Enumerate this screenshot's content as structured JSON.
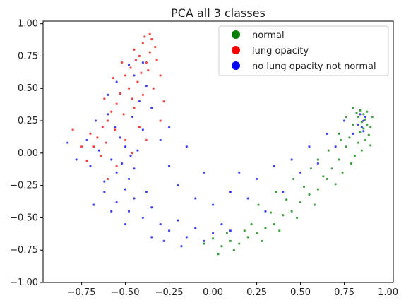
{
  "chart_data": {
    "type": "scatter",
    "title": "PCA all 3 classes",
    "xlabel": "",
    "ylabel": "",
    "xlim": [
      -0.97,
      1.03
    ],
    "ylim": [
      -1.0,
      1.02
    ],
    "x_ticks": [
      -0.75,
      -0.5,
      -0.25,
      0.0,
      0.25,
      0.5,
      0.75,
      1.0
    ],
    "x_tick_labels": [
      "−0.75",
      "−0.50",
      "−0.25",
      "0.00",
      "0.25",
      "0.50",
      "0.75",
      "1.00"
    ],
    "y_ticks": [
      -1.0,
      -0.75,
      -0.5,
      -0.25,
      0.0,
      0.25,
      0.5,
      0.75,
      1.0
    ],
    "y_tick_labels": [
      "−1.00",
      "−0.75",
      "−0.50",
      "−0.25",
      "0.00",
      "0.25",
      "0.50",
      "0.75",
      "1.00"
    ],
    "grid": false,
    "legend_position": "top-right",
    "series": [
      {
        "name": "normal",
        "color": "#008000",
        "points": [
          [
            0.84,
            0.33
          ],
          [
            0.86,
            0.3
          ],
          [
            0.83,
            0.28
          ],
          [
            0.87,
            0.26
          ],
          [
            0.85,
            0.24
          ],
          [
            0.88,
            0.22
          ],
          [
            0.82,
            0.31
          ],
          [
            0.86,
            0.19
          ],
          [
            0.84,
            0.16
          ],
          [
            0.89,
            0.14
          ],
          [
            0.8,
            0.22
          ],
          [
            0.87,
            0.1
          ],
          [
            0.83,
            0.08
          ],
          [
            0.9,
            0.06
          ],
          [
            0.78,
            0.12
          ],
          [
            0.85,
            0.02
          ],
          [
            0.81,
            -0.02
          ],
          [
            0.76,
            0.05
          ],
          [
            0.72,
            -0.05
          ],
          [
            0.79,
            -0.08
          ],
          [
            0.68,
            -0.12
          ],
          [
            0.74,
            -0.15
          ],
          [
            0.65,
            -0.2
          ],
          [
            0.7,
            -0.24
          ],
          [
            0.6,
            -0.28
          ],
          [
            0.63,
            -0.18
          ],
          [
            0.55,
            -0.32
          ],
          [
            0.58,
            -0.4
          ],
          [
            0.5,
            -0.38
          ],
          [
            0.52,
            -0.26
          ],
          [
            0.45,
            -0.45
          ],
          [
            0.48,
            -0.5
          ],
          [
            0.4,
            -0.48
          ],
          [
            0.42,
            -0.36
          ],
          [
            0.35,
            -0.55
          ],
          [
            0.38,
            -0.6
          ],
          [
            0.3,
            -0.58
          ],
          [
            0.33,
            -0.46
          ],
          [
            0.25,
            -0.62
          ],
          [
            0.28,
            -0.68
          ],
          [
            0.2,
            -0.65
          ],
          [
            0.22,
            -0.55
          ],
          [
            0.15,
            -0.7
          ],
          [
            0.18,
            -0.6
          ],
          [
            0.1,
            -0.68
          ],
          [
            0.12,
            -0.75
          ],
          [
            0.05,
            -0.72
          ],
          [
            0.08,
            -0.62
          ],
          [
            0.0,
            -0.66
          ],
          [
            0.03,
            -0.78
          ],
          [
            -0.05,
            -0.7
          ],
          [
            0.6,
            -0.05
          ],
          [
            0.66,
            0.02
          ],
          [
            0.72,
            0.15
          ],
          [
            0.56,
            -0.12
          ],
          [
            0.46,
            -0.2
          ],
          [
            0.36,
            -0.3
          ],
          [
            0.26,
            -0.4
          ],
          [
            0.9,
            0.2
          ],
          [
            0.91,
            0.28
          ],
          [
            0.8,
            0.35
          ],
          [
            0.76,
            0.28
          ],
          [
            0.73,
            0.1
          ],
          [
            0.88,
            0.32
          ]
        ]
      },
      {
        "name": "lung opacity",
        "color": "#ff0000",
        "points": [
          [
            -0.45,
            0.8
          ],
          [
            -0.42,
            0.75
          ],
          [
            -0.4,
            0.85
          ],
          [
            -0.38,
            0.7
          ],
          [
            -0.44,
            0.72
          ],
          [
            -0.36,
            0.78
          ],
          [
            -0.47,
            0.66
          ],
          [
            -0.41,
            0.62
          ],
          [
            -0.35,
            0.88
          ],
          [
            -0.39,
            0.9
          ],
          [
            -0.5,
            0.6
          ],
          [
            -0.43,
            0.55
          ],
          [
            -0.48,
            0.5
          ],
          [
            -0.53,
            0.46
          ],
          [
            -0.46,
            0.42
          ],
          [
            -0.55,
            0.38
          ],
          [
            -0.58,
            0.32
          ],
          [
            -0.51,
            0.3
          ],
          [
            -0.6,
            0.25
          ],
          [
            -0.63,
            0.2
          ],
          [
            -0.56,
            0.18
          ],
          [
            -0.66,
            0.12
          ],
          [
            -0.61,
            0.08
          ],
          [
            -0.7,
            0.15
          ],
          [
            -0.68,
            0.05
          ],
          [
            -0.64,
            -0.02
          ],
          [
            -0.72,
            -0.06
          ],
          [
            -0.33,
            0.82
          ],
          [
            -0.32,
            0.72
          ],
          [
            -0.37,
            0.64
          ],
          [
            -0.3,
            0.6
          ],
          [
            -0.34,
            0.5
          ],
          [
            -0.4,
            0.45
          ],
          [
            -0.52,
            0.7
          ],
          [
            -0.57,
            0.58
          ],
          [
            -0.62,
            0.42
          ],
          [
            -0.75,
            0.05
          ],
          [
            -0.45,
            0.35
          ],
          [
            -0.28,
            0.4
          ],
          [
            -0.42,
            0.2
          ],
          [
            -0.5,
            0.1
          ],
          [
            -0.46,
            0.0
          ],
          [
            -0.55,
            -0.1
          ],
          [
            -0.6,
            -0.2
          ],
          [
            -0.38,
            0.1
          ],
          [
            -0.3,
            0.25
          ],
          [
            -0.8,
            0.18
          ],
          [
            -0.36,
            0.92
          ]
        ]
      },
      {
        "name": "no lung opacity not normal",
        "color": "#0000ff",
        "points": [
          [
            -0.5,
            0.05
          ],
          [
            -0.47,
            -0.02
          ],
          [
            -0.52,
            -0.08
          ],
          [
            -0.45,
            -0.12
          ],
          [
            -0.55,
            -0.15
          ],
          [
            -0.48,
            -0.2
          ],
          [
            -0.58,
            -0.05
          ],
          [
            -0.43,
            0.02
          ],
          [
            -0.5,
            -0.28
          ],
          [
            -0.53,
            0.12
          ],
          [
            -0.56,
            0.2
          ],
          [
            -0.46,
            0.28
          ],
          [
            -0.6,
            0.3
          ],
          [
            -0.4,
            0.18
          ],
          [
            -0.62,
            -0.22
          ],
          [
            -0.45,
            -0.35
          ],
          [
            -0.55,
            -0.38
          ],
          [
            -0.38,
            -0.3
          ],
          [
            -0.48,
            -0.45
          ],
          [
            -0.4,
            -0.5
          ],
          [
            -0.35,
            -0.42
          ],
          [
            -0.3,
            -0.55
          ],
          [
            -0.25,
            -0.6
          ],
          [
            -0.2,
            -0.52
          ],
          [
            -0.15,
            -0.65
          ],
          [
            -0.1,
            -0.58
          ],
          [
            -0.05,
            -0.68
          ],
          [
            0.0,
            -0.62
          ],
          [
            0.05,
            -0.55
          ],
          [
            0.1,
            -0.6
          ],
          [
            -0.18,
            -0.72
          ],
          [
            -0.28,
            -0.68
          ],
          [
            -0.65,
            0.02
          ],
          [
            -0.67,
            0.25
          ],
          [
            -0.42,
            0.4
          ],
          [
            -0.38,
            0.52
          ],
          [
            -0.45,
            0.6
          ],
          [
            -0.4,
            0.7
          ],
          [
            -0.35,
            0.35
          ],
          [
            -0.3,
            0.1
          ],
          [
            -0.25,
            -0.1
          ],
          [
            -0.2,
            -0.25
          ],
          [
            -0.1,
            -0.35
          ],
          [
            0.0,
            -0.4
          ],
          [
            0.1,
            -0.3
          ],
          [
            0.2,
            -0.35
          ],
          [
            0.3,
            -0.45
          ],
          [
            0.4,
            -0.3
          ],
          [
            0.5,
            -0.15
          ],
          [
            0.6,
            -0.08
          ],
          [
            0.7,
            0.05
          ],
          [
            0.8,
            0.15
          ],
          [
            0.84,
            0.3
          ],
          [
            0.86,
            0.25
          ],
          [
            0.85,
            0.2
          ],
          [
            0.87,
            0.28
          ],
          [
            0.83,
            0.22
          ],
          [
            0.86,
            0.17
          ],
          [
            -0.7,
            -0.1
          ],
          [
            -0.72,
            0.1
          ],
          [
            -0.62,
            -0.3
          ],
          [
            -0.58,
            -0.45
          ],
          [
            -0.5,
            -0.55
          ],
          [
            -0.35,
            -0.65
          ],
          [
            -0.6,
            0.45
          ],
          [
            -0.55,
            0.55
          ],
          [
            -0.48,
            0.68
          ],
          [
            -0.25,
            0.2
          ],
          [
            -0.15,
            0.05
          ],
          [
            -0.05,
            -0.15
          ],
          [
            0.15,
            -0.15
          ],
          [
            0.25,
            -0.2
          ],
          [
            0.35,
            -0.1
          ],
          [
            0.45,
            -0.05
          ],
          [
            0.55,
            0.05
          ],
          [
            0.65,
            0.15
          ],
          [
            0.75,
            0.25
          ],
          [
            -0.78,
            -0.05
          ],
          [
            -0.83,
            0.08
          ],
          [
            -0.68,
            -0.4
          ]
        ]
      }
    ]
  }
}
